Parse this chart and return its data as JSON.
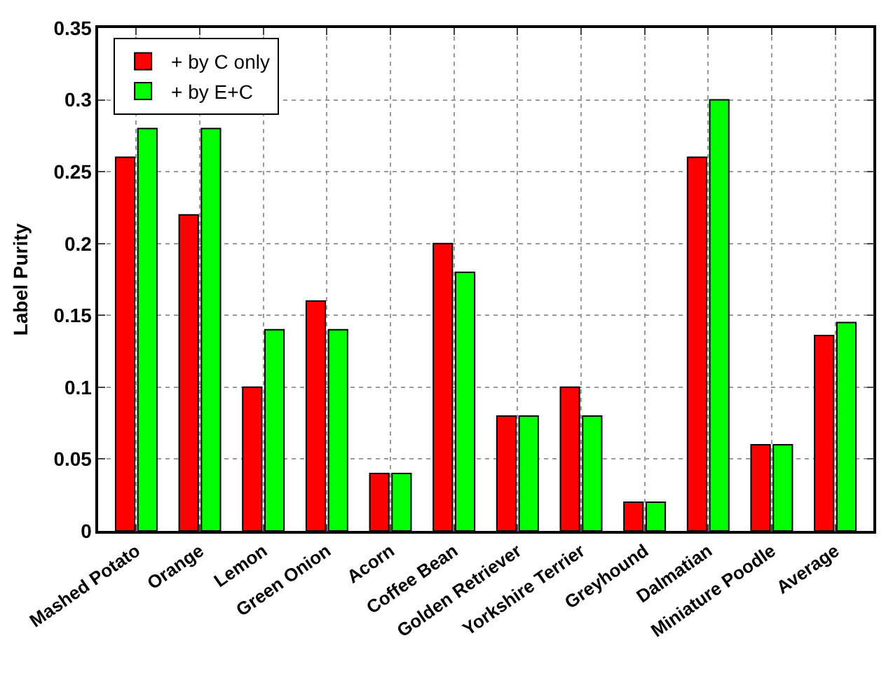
{
  "chart_data": {
    "type": "bar",
    "ylabel": "Label Purity",
    "categories": [
      "Mashed Potato",
      "Orange",
      "Lemon",
      "Green Onion",
      "Acorn",
      "Coffee Bean",
      "Golden Retriever",
      "Yorkshire Terrier",
      "Greyhound",
      "Dalmatian",
      "Miniature Poodle",
      "Average"
    ],
    "series": [
      {
        "name": "+ by C only",
        "color": "#ff0000",
        "values": [
          0.26,
          0.22,
          0.1,
          0.16,
          0.04,
          0.2,
          0.08,
          0.1,
          0.02,
          0.26,
          0.06,
          0.136
        ]
      },
      {
        "name": "+ by E+C",
        "color": "#00ff00",
        "values": [
          0.28,
          0.28,
          0.14,
          0.14,
          0.04,
          0.18,
          0.08,
          0.08,
          0.02,
          0.3,
          0.06,
          0.145
        ]
      }
    ],
    "ylim": [
      0,
      0.35
    ],
    "yticks": [
      0,
      0.05,
      0.1,
      0.15,
      0.2,
      0.25,
      0.3,
      0.35
    ],
    "grid": true,
    "legend": "top left"
  }
}
